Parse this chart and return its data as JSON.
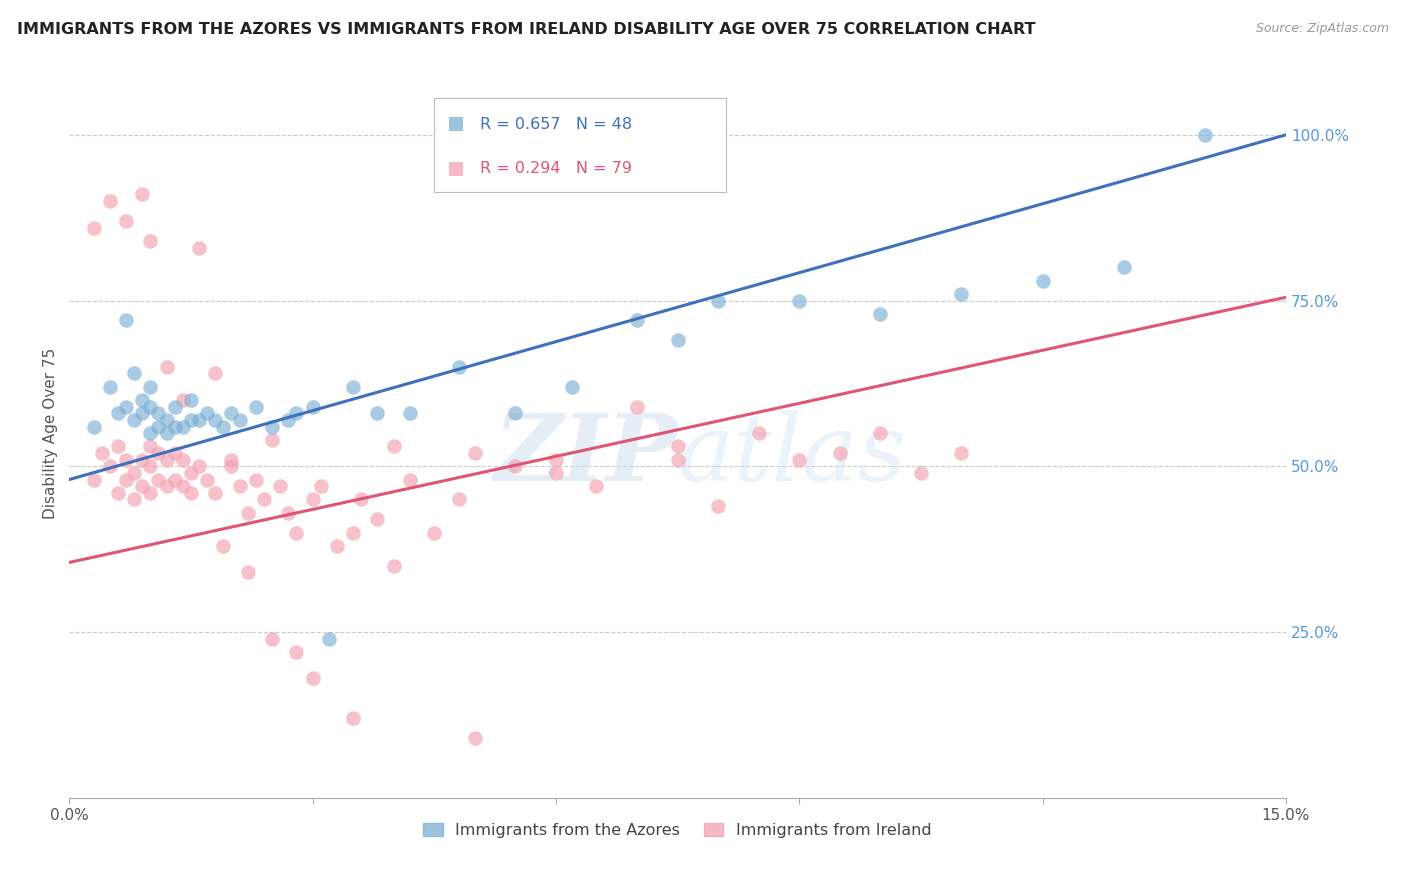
{
  "title": "IMMIGRANTS FROM THE AZORES VS IMMIGRANTS FROM IRELAND DISABILITY AGE OVER 75 CORRELATION CHART",
  "source": "Source: ZipAtlas.com",
  "ylabel": "Disability Age Over 75",
  "x_min": 0.0,
  "x_max": 0.15,
  "y_min": 0.0,
  "y_max": 1.1,
  "x_ticks": [
    0.0,
    0.03,
    0.06,
    0.09,
    0.12,
    0.15
  ],
  "x_tick_labels": [
    "0.0%",
    "",
    "",
    "",
    "",
    "15.0%"
  ],
  "y_tick_labels_right": [
    "25.0%",
    "50.0%",
    "75.0%",
    "100.0%"
  ],
  "y_tick_positions_right": [
    0.25,
    0.5,
    0.75,
    1.0
  ],
  "legend_azores_r": "R = 0.657",
  "legend_azores_n": "N = 48",
  "legend_ireland_r": "R = 0.294",
  "legend_ireland_n": "N = 79",
  "color_azores": "#7BAFD4",
  "color_ireland": "#F4A0B0",
  "color_azores_line": "#4070BB",
  "color_ireland_line": "#E05575",
  "color_title": "#222222",
  "color_source": "#999999",
  "color_right_axis": "#5599DD",
  "watermark_color": "#D0DFF0",
  "azores_x": [
    0.003,
    0.005,
    0.006,
    0.007,
    0.007,
    0.008,
    0.008,
    0.009,
    0.009,
    0.01,
    0.01,
    0.01,
    0.011,
    0.011,
    0.012,
    0.012,
    0.013,
    0.013,
    0.014,
    0.015,
    0.015,
    0.016,
    0.017,
    0.018,
    0.019,
    0.02,
    0.021,
    0.023,
    0.025,
    0.027,
    0.028,
    0.03,
    0.032,
    0.035,
    0.038,
    0.042,
    0.048,
    0.055,
    0.062,
    0.07,
    0.075,
    0.08,
    0.09,
    0.1,
    0.11,
    0.12,
    0.13,
    0.14
  ],
  "azores_y": [
    0.56,
    0.62,
    0.58,
    0.59,
    0.72,
    0.64,
    0.57,
    0.6,
    0.58,
    0.55,
    0.59,
    0.62,
    0.56,
    0.58,
    0.55,
    0.57,
    0.56,
    0.59,
    0.56,
    0.57,
    0.6,
    0.57,
    0.58,
    0.57,
    0.56,
    0.58,
    0.57,
    0.59,
    0.56,
    0.57,
    0.58,
    0.59,
    0.24,
    0.62,
    0.58,
    0.58,
    0.65,
    0.58,
    0.62,
    0.72,
    0.69,
    0.75,
    0.75,
    0.73,
    0.76,
    0.78,
    0.8,
    1.0
  ],
  "ireland_x": [
    0.003,
    0.004,
    0.005,
    0.006,
    0.006,
    0.007,
    0.007,
    0.008,
    0.008,
    0.009,
    0.009,
    0.01,
    0.01,
    0.01,
    0.011,
    0.011,
    0.012,
    0.012,
    0.013,
    0.013,
    0.014,
    0.014,
    0.015,
    0.015,
    0.016,
    0.017,
    0.018,
    0.019,
    0.02,
    0.021,
    0.022,
    0.023,
    0.024,
    0.025,
    0.026,
    0.027,
    0.028,
    0.03,
    0.031,
    0.033,
    0.035,
    0.036,
    0.038,
    0.04,
    0.042,
    0.045,
    0.048,
    0.05,
    0.055,
    0.06,
    0.065,
    0.07,
    0.075,
    0.08,
    0.085,
    0.09,
    0.095,
    0.1,
    0.105,
    0.11,
    0.003,
    0.005,
    0.007,
    0.009,
    0.01,
    0.012,
    0.014,
    0.016,
    0.018,
    0.02,
    0.022,
    0.025,
    0.028,
    0.03,
    0.035,
    0.04,
    0.05,
    0.06,
    0.075
  ],
  "ireland_y": [
    0.48,
    0.52,
    0.5,
    0.46,
    0.53,
    0.48,
    0.51,
    0.45,
    0.49,
    0.47,
    0.51,
    0.46,
    0.5,
    0.53,
    0.48,
    0.52,
    0.47,
    0.51,
    0.48,
    0.52,
    0.47,
    0.51,
    0.46,
    0.49,
    0.5,
    0.48,
    0.46,
    0.38,
    0.5,
    0.47,
    0.43,
    0.48,
    0.45,
    0.54,
    0.47,
    0.43,
    0.4,
    0.45,
    0.47,
    0.38,
    0.4,
    0.45,
    0.42,
    0.35,
    0.48,
    0.4,
    0.45,
    0.52,
    0.5,
    0.51,
    0.47,
    0.59,
    0.53,
    0.44,
    0.55,
    0.51,
    0.52,
    0.55,
    0.49,
    0.52,
    0.86,
    0.9,
    0.87,
    0.91,
    0.84,
    0.65,
    0.6,
    0.83,
    0.64,
    0.51,
    0.34,
    0.24,
    0.22,
    0.18,
    0.12,
    0.53,
    0.09,
    0.49,
    0.51
  ],
  "line_azores_x0": 0.0,
  "line_azores_y0": 0.48,
  "line_azores_x1": 0.15,
  "line_azores_y1": 1.0,
  "line_ireland_x0": 0.0,
  "line_ireland_y0": 0.355,
  "line_ireland_x1": 0.15,
  "line_ireland_y1": 0.755
}
